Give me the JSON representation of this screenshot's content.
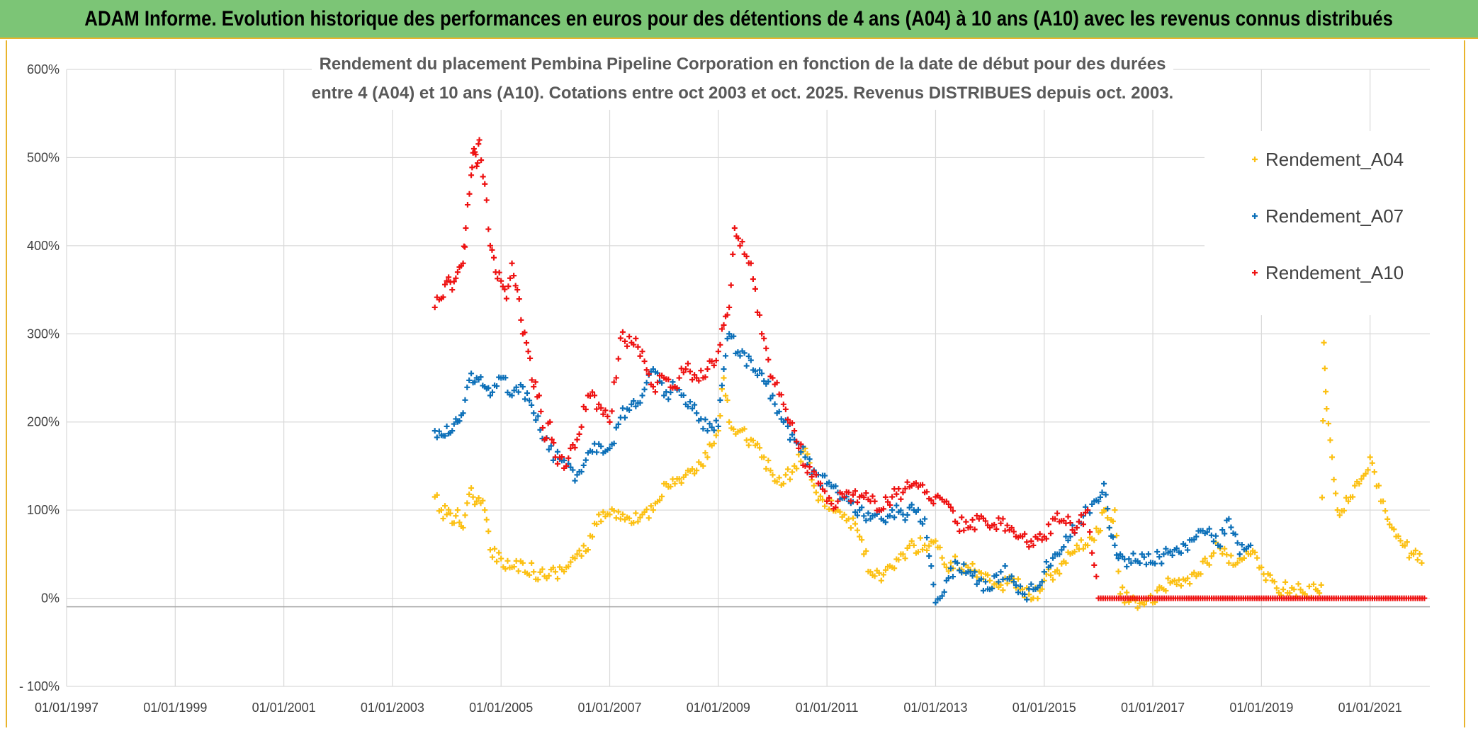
{
  "banner": {
    "title": "ADAM Informe. Evolution historique des performances en euros pour des détentions de 4 ans (A04) à 10 ans (A10) avec les revenus connus distribués"
  },
  "colors": {
    "banner": "#7cc576",
    "A04": "#fcc012",
    "A07": "#0b6fb8",
    "A10": "#ee1111"
  },
  "chart_data": {
    "type": "scatter",
    "title_line1": "Rendement du placement Pembina Pipeline Corporation en fonction de la date de début pour des durées",
    "title_line2": "entre 4 (A04) et 10 ans (A10). Cotations entre oct 2003 et oct. 2025. Revenus DISTRIBUES depuis oct. 2003.",
    "xlabel": "",
    "ylabel": "",
    "ylim": [
      -100,
      600
    ],
    "xlim": [
      1997.0,
      2022.1
    ],
    "y_ticks": [
      {
        "value": 600,
        "label": "600%"
      },
      {
        "value": 500,
        "label": "500%"
      },
      {
        "value": 400,
        "label": "400%"
      },
      {
        "value": 300,
        "label": "300%"
      },
      {
        "value": 200,
        "label": "200%"
      },
      {
        "value": 100,
        "label": "100%"
      },
      {
        "value": 0,
        "label": "0%"
      },
      {
        "value": -100,
        "label": "- 100%"
      }
    ],
    "x_ticks": [
      {
        "value": 1997,
        "label": "01/01/1997"
      },
      {
        "value": 1999,
        "label": "01/01/1999"
      },
      {
        "value": 2001,
        "label": "01/01/2001"
      },
      {
        "value": 2003,
        "label": "01/01/2003"
      },
      {
        "value": 2005,
        "label": "01/01/2005"
      },
      {
        "value": 2007,
        "label": "01/01/2007"
      },
      {
        "value": 2009,
        "label": "01/01/2009"
      },
      {
        "value": 2011,
        "label": "01/01/2011"
      },
      {
        "value": 2013,
        "label": "01/01/2013"
      },
      {
        "value": 2015,
        "label": "01/01/2015"
      },
      {
        "value": 2017,
        "label": "01/01/2017"
      },
      {
        "value": 2019,
        "label": "01/01/2019"
      },
      {
        "value": 2021,
        "label": "01/01/2021"
      }
    ],
    "grid": true,
    "legend_position": "top-right",
    "series": [
      {
        "name": "Rendement_A04",
        "color": "#fcc012",
        "x": [
          2003.78,
          2003.9,
          2004.0,
          2004.1,
          2004.2,
          2004.3,
          2004.45,
          2004.55,
          2004.7,
          2004.8,
          2005.0,
          2005.2,
          2005.4,
          2005.6,
          2005.8,
          2006.0,
          2006.2,
          2006.4,
          2006.6,
          2006.8,
          2007.0,
          2007.2,
          2007.4,
          2007.6,
          2007.8,
          2008.0,
          2008.2,
          2008.4,
          2008.6,
          2008.8,
          2009.0,
          2009.1,
          2009.2,
          2009.4,
          2009.6,
          2009.8,
          2010.0,
          2010.2,
          2010.4,
          2010.6,
          2010.8,
          2011.0,
          2011.2,
          2011.4,
          2011.6,
          2011.8,
          2012.0,
          2012.2,
          2012.4,
          2012.6,
          2012.8,
          2013.0,
          2013.2,
          2013.4,
          2013.6,
          2013.8,
          2014.0,
          2014.2,
          2014.4,
          2014.6,
          2014.8,
          2015.0,
          2015.2,
          2015.4,
          2015.6,
          2015.8,
          2016.0,
          2016.1,
          2016.2,
          2016.3,
          2016.4,
          2016.6,
          2016.8,
          2017.0,
          2017.2,
          2017.4,
          2017.6,
          2017.8,
          2018.0,
          2018.2,
          2018.4,
          2018.6,
          2018.8,
          2019.0,
          2019.2,
          2019.4,
          2019.6,
          2019.8,
          2020.0,
          2020.1,
          2020.15,
          2020.2,
          2020.3,
          2020.4,
          2020.6,
          2020.8,
          2021.0,
          2021.2,
          2021.4,
          2021.6,
          2021.8,
          2021.95
        ],
        "y": [
          115,
          100,
          95,
          85,
          100,
          80,
          125,
          110,
          100,
          55,
          45,
          35,
          40,
          30,
          25,
          30,
          35,
          50,
          55,
          95,
          95,
          90,
          85,
          95,
          100,
          130,
          130,
          140,
          145,
          160,
          190,
          250,
          200,
          190,
          180,
          160,
          140,
          130,
          150,
          170,
          120,
          110,
          100,
          90,
          70,
          30,
          20,
          35,
          50,
          60,
          60,
          65,
          35,
          40,
          35,
          30,
          20,
          15,
          20,
          10,
          0,
          20,
          30,
          40,
          60,
          60,
          75,
          100,
          80,
          100,
          5,
          0,
          -5,
          -5,
          10,
          20,
          20,
          25,
          40,
          60,
          40,
          45,
          50,
          35,
          20,
          10,
          10,
          5,
          10,
          15,
          290,
          215,
          160,
          100,
          110,
          130,
          160,
          110,
          80,
          60,
          50,
          40
        ]
      },
      {
        "name": "Rendement_A07",
        "color": "#0b6fb8",
        "x": [
          2003.78,
          2003.9,
          2004.0,
          2004.1,
          2004.2,
          2004.3,
          2004.45,
          2004.55,
          2004.7,
          2004.8,
          2005.0,
          2005.2,
          2005.4,
          2005.6,
          2005.8,
          2006.0,
          2006.2,
          2006.4,
          2006.6,
          2006.8,
          2007.0,
          2007.2,
          2007.4,
          2007.6,
          2007.8,
          2008.0,
          2008.2,
          2008.4,
          2008.6,
          2008.8,
          2009.0,
          2009.1,
          2009.2,
          2009.4,
          2009.6,
          2009.8,
          2010.0,
          2010.2,
          2010.4,
          2010.6,
          2010.8,
          2011.0,
          2011.2,
          2011.4,
          2011.6,
          2011.8,
          2012.0,
          2012.2,
          2012.4,
          2012.6,
          2012.8,
          2013.0,
          2013.2,
          2013.4,
          2013.6,
          2013.8,
          2014.0,
          2014.2,
          2014.4,
          2014.6,
          2014.8,
          2015.0,
          2015.2,
          2015.4,
          2015.6,
          2015.8,
          2016.0,
          2016.1,
          2016.2,
          2016.3,
          2016.4,
          2016.6,
          2016.8,
          2017.0,
          2017.2,
          2017.4,
          2017.6,
          2017.8,
          2018.0,
          2018.2,
          2018.4,
          2018.6,
          2018.8
        ],
        "y": [
          190,
          185,
          195,
          190,
          200,
          210,
          255,
          250,
          240,
          230,
          250,
          230,
          240,
          210,
          180,
          160,
          150,
          140,
          165,
          175,
          170,
          205,
          220,
          230,
          260,
          230,
          240,
          220,
          210,
          190,
          195,
          260,
          300,
          275,
          270,
          255,
          230,
          200,
          180,
          160,
          140,
          130,
          120,
          110,
          100,
          90,
          90,
          100,
          95,
          100,
          90,
          -5,
          20,
          40,
          30,
          20,
          10,
          30,
          25,
          5,
          10,
          30,
          50,
          70,
          80,
          100,
          110,
          130,
          80,
          60,
          50,
          40,
          50,
          40,
          50,
          55,
          60,
          70,
          75,
          60,
          90,
          50,
          60
        ]
      },
      {
        "name": "Rendement_A10",
        "color": "#ee1111",
        "x": [
          2003.78,
          2003.9,
          2004.0,
          2004.1,
          2004.2,
          2004.3,
          2004.35,
          2004.45,
          2004.5,
          2004.55,
          2004.6,
          2004.7,
          2004.8,
          2004.9,
          2005.0,
          2005.1,
          2005.2,
          2005.3,
          2005.4,
          2005.5,
          2005.6,
          2005.7,
          2005.8,
          2005.9,
          2006.0,
          2006.2,
          2006.4,
          2006.6,
          2006.8,
          2007.0,
          2007.2,
          2007.4,
          2007.6,
          2007.8,
          2008.0,
          2008.2,
          2008.4,
          2008.6,
          2008.8,
          2009.0,
          2009.1,
          2009.2,
          2009.3,
          2009.4,
          2009.6,
          2009.8,
          2010.0,
          2010.2,
          2010.4,
          2010.6,
          2010.8,
          2011.0,
          2011.2,
          2011.4,
          2011.6,
          2011.8,
          2012.0,
          2012.2,
          2012.4,
          2012.6,
          2012.8,
          2013.0,
          2013.2,
          2013.4,
          2013.6,
          2013.8,
          2014.0,
          2014.2,
          2014.4,
          2014.6,
          2014.8,
          2015.0,
          2015.2,
          2015.4,
          2015.6,
          2015.8,
          2016.0,
          2016.5,
          2017.0,
          2017.5,
          2018.0,
          2018.5,
          2019.0,
          2019.5,
          2020.0,
          2020.5,
          2021.0,
          2021.5,
          2022.0
        ],
        "y": [
          330,
          340,
          360,
          350,
          370,
          380,
          420,
          480,
          510,
          490,
          520,
          470,
          400,
          370,
          360,
          340,
          380,
          350,
          300,
          280,
          240,
          230,
          180,
          200,
          160,
          150,
          180,
          230,
          220,
          200,
          295,
          290,
          280,
          240,
          250,
          240,
          260,
          250,
          260,
          280,
          310,
          330,
          420,
          400,
          380,
          300,
          250,
          220,
          190,
          150,
          140,
          110,
          110,
          120,
          115,
          110,
          100,
          115,
          120,
          130,
          120,
          115,
          110,
          85,
          80,
          90,
          80,
          85,
          80,
          70,
          60,
          70,
          90,
          85,
          80,
          100,
          0,
          0,
          0,
          0,
          0,
          0,
          0,
          0,
          0,
          0,
          0,
          0,
          0
        ]
      }
    ]
  }
}
